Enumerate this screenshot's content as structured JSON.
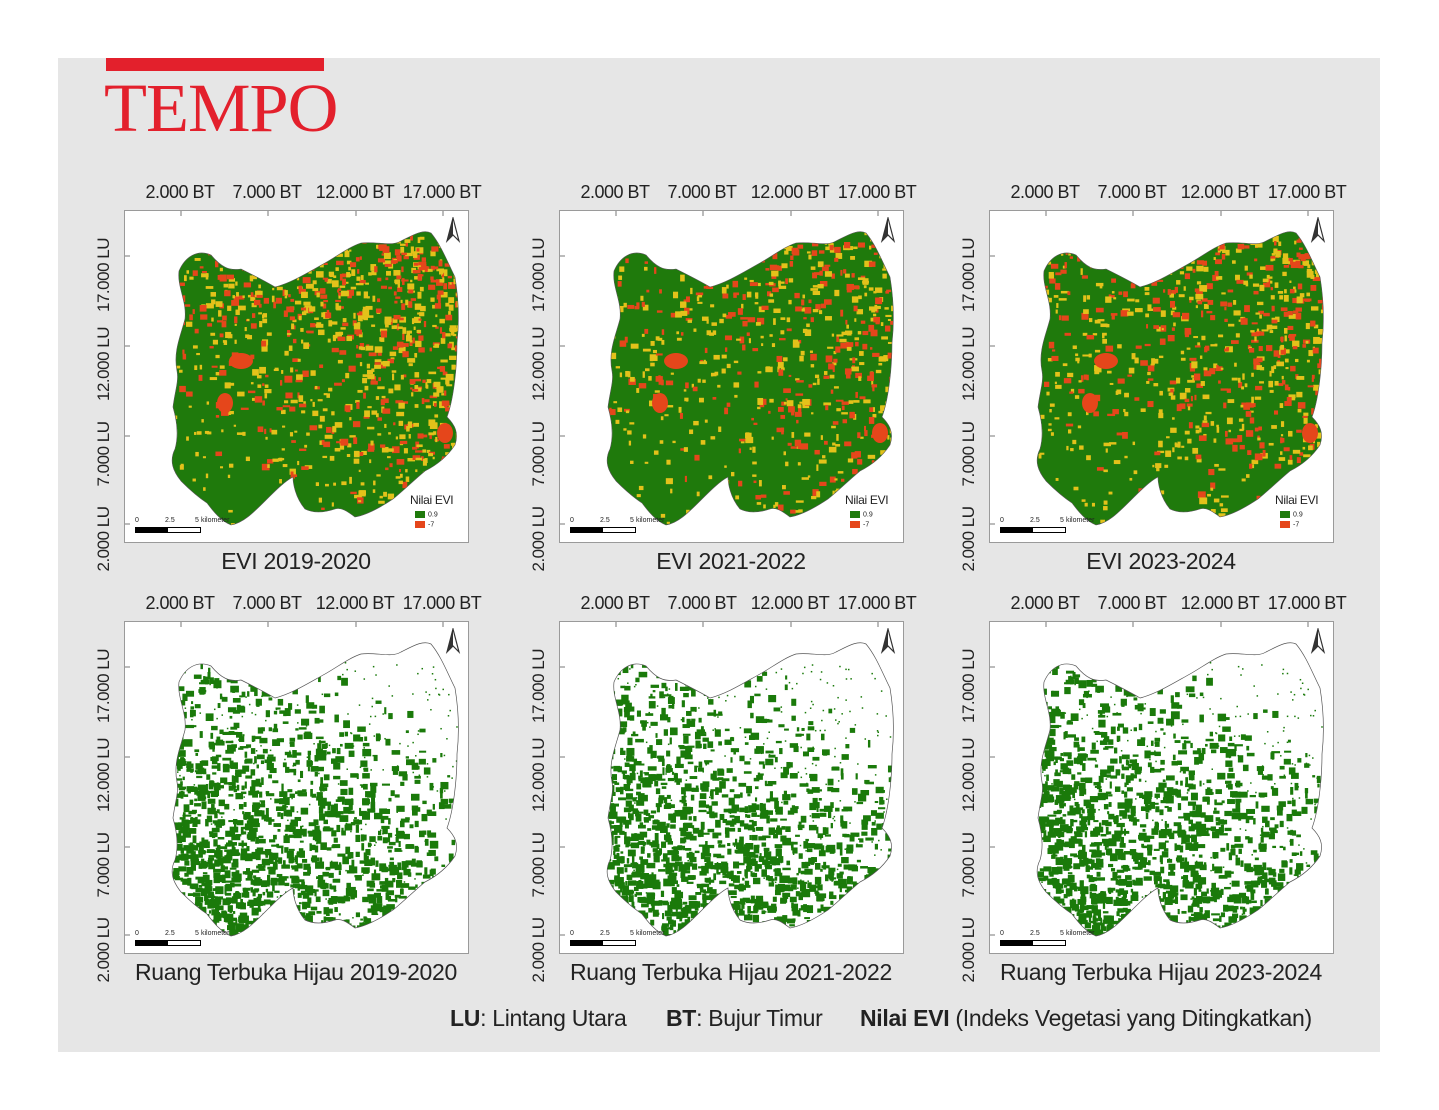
{
  "logo": {
    "text": "TEMPO"
  },
  "colors": {
    "high_evi": "#1f7a0c",
    "mid_evi": "#e3c21a",
    "low_evi": "#e5461b",
    "green_space": "#1a7a0a",
    "brand": "#e3202c"
  },
  "axes": {
    "bt_labels": [
      "2.000 BT",
      "7.000 BT",
      "12.000 BT",
      "17.000 BT"
    ],
    "lu_labels": [
      "17.000 LU",
      "12.000 LU",
      "7.000 LU",
      "2.000 LU"
    ]
  },
  "legend": {
    "title": "Nilai EVI",
    "high": "0.9",
    "low": "-7"
  },
  "scale": {
    "ticks": [
      "0",
      "2.5",
      "5"
    ],
    "unit": "kilometer"
  },
  "maps": [
    {
      "caption": "EVI 2019-2020",
      "kind": "evi",
      "green_share": 0.45
    },
    {
      "caption": "EVI 2021-2022",
      "kind": "evi",
      "green_share": 0.65
    },
    {
      "caption": "EVI 2023-2024",
      "kind": "evi",
      "green_share": 0.58
    },
    {
      "caption": "Ruang Terbuka Hijau 2019-2020",
      "kind": "rth",
      "green_share": 0.5
    },
    {
      "caption": "Ruang Terbuka Hijau 2021-2022",
      "kind": "rth",
      "green_share": 0.55
    },
    {
      "caption": "Ruang Terbuka Hijau 2023-2024",
      "kind": "rth",
      "green_share": 0.53
    }
  ],
  "footer": {
    "lu_abbr": "LU",
    "lu_text": ": Lintang Utara",
    "bt_abbr": "BT",
    "bt_text": ": Bujur Timur",
    "evi_abbr": "Nilai EVI",
    "evi_text": " (Indeks Vegetasi yang Ditingkatkan)"
  }
}
